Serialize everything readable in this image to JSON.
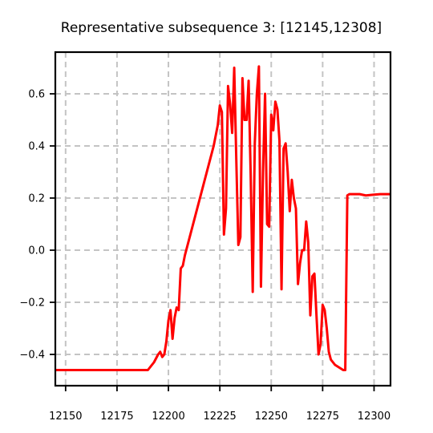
{
  "chart_data": {
    "type": "line",
    "title": "Representative subsequence 3: [12145,12308]",
    "xlabel": "",
    "ylabel": "",
    "xlim": [
      12145,
      12308
    ],
    "ylim": [
      -0.52,
      0.76
    ],
    "grid": true,
    "legend": "none",
    "xticks": [
      12150,
      12175,
      12200,
      12225,
      12250,
      12275,
      12300
    ],
    "yticks": [
      -0.4,
      -0.2,
      0.0,
      0.2,
      0.4,
      0.6
    ],
    "xtick_labels": [
      "12150",
      "12175",
      "12200",
      "12225",
      "12250",
      "12275",
      "12300"
    ],
    "ytick_labels": [
      "−0.4",
      "−0.2",
      "0.0",
      "0.2",
      "0.4",
      "0.6"
    ],
    "series": [
      {
        "color": "#ff0000",
        "x": [
          12145,
          12190,
          12193,
          12195,
          12196,
          12197,
          12198,
          12199,
          12200,
          12201,
          12202,
          12203,
          12204,
          12205,
          12206,
          12207,
          12208,
          12210,
          12215,
          12220,
          12222,
          12224,
          12225,
          12226,
          12227,
          12228,
          12229,
          12230,
          12231,
          12232,
          12233,
          12234,
          12235,
          12236,
          12237,
          12238,
          12239,
          12240,
          12241,
          12242,
          12243,
          12244,
          12245,
          12246,
          12247,
          12248,
          12249,
          12250,
          12251,
          12252,
          12253,
          12254,
          12255,
          12256,
          12257,
          12258,
          12259,
          12260,
          12261,
          12262,
          12263,
          12264,
          12265,
          12266,
          12267,
          12268,
          12269,
          12270,
          12271,
          12272,
          12273,
          12274,
          12275,
          12276,
          12277,
          12278,
          12279,
          12281,
          12283,
          12285,
          12286,
          12287,
          12288,
          12290,
          12293,
          12296,
          12300,
          12303,
          12308
        ],
        "y": [
          -0.46,
          -0.46,
          -0.43,
          -0.4,
          -0.39,
          -0.41,
          -0.4,
          -0.35,
          -0.27,
          -0.23,
          -0.34,
          -0.26,
          -0.22,
          -0.23,
          -0.07,
          -0.06,
          -0.02,
          0.04,
          0.19,
          0.34,
          0.4,
          0.48,
          0.555,
          0.53,
          0.06,
          0.16,
          0.63,
          0.56,
          0.45,
          0.7,
          0.35,
          0.02,
          0.05,
          0.66,
          0.5,
          0.5,
          0.65,
          0.29,
          -0.16,
          0.41,
          0.6,
          0.705,
          -0.14,
          0.3,
          0.6,
          0.1,
          0.09,
          0.52,
          0.46,
          0.57,
          0.54,
          0.42,
          -0.15,
          0.39,
          0.41,
          0.3,
          0.15,
          0.27,
          0.2,
          0.16,
          -0.13,
          -0.05,
          0.0,
          0.0,
          0.11,
          0.03,
          -0.25,
          -0.1,
          -0.09,
          -0.25,
          -0.4,
          -0.36,
          -0.21,
          -0.23,
          -0.3,
          -0.39,
          -0.42,
          -0.44,
          -0.45,
          -0.46,
          -0.46,
          0.21,
          0.215,
          0.215,
          0.215,
          0.21,
          0.213,
          0.215,
          0.215
        ]
      }
    ]
  }
}
